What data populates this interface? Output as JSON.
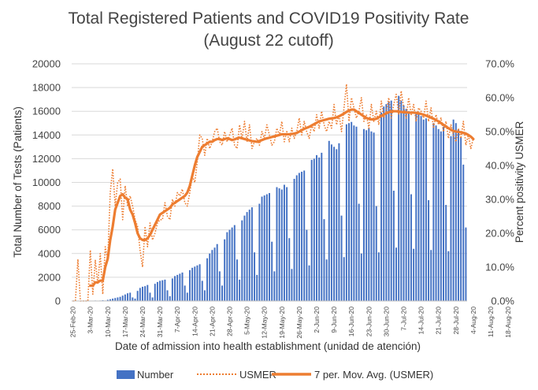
{
  "chart_data": {
    "type": "bar",
    "title": [
      "Total Registered Patients and COVID19 Positivity Rate",
      "(August 22 cutoff)"
    ],
    "xlabel": "Date of admission into health establishment (unidad de atención)",
    "ylabel": "Total Number of Tests (Patients)",
    "y2label": "Percent positivity USMER",
    "ylim": [
      0,
      20000
    ],
    "y2lim": [
      0,
      0.7
    ],
    "yticks": [
      "0",
      "2000",
      "4000",
      "6000",
      "8000",
      "10000",
      "12000",
      "14000",
      "16000",
      "18000",
      "20000"
    ],
    "y2ticks": [
      "0.0%",
      "10.0%",
      "20.0%",
      "30.0%",
      "40.0%",
      "50.0%",
      "60.0%",
      "70.0%"
    ],
    "x_tick_labels": [
      "25-Feb-20",
      "3-Mar-20",
      "10-Mar-20",
      "17-Mar-20",
      "24-Mar-20",
      "31-Mar-20",
      "7-Apr-20",
      "14-Apr-20",
      "21-Apr-20",
      "28-Apr-20",
      "5-May-20",
      "12-May-20",
      "19-May-20",
      "26-May-20",
      "2-Jun-20",
      "9-Jun-20",
      "16-Jun-20",
      "23-Jun-20",
      "30-Jun-20",
      "7-Jul-20",
      "14-Jul-20",
      "21-Jul-20",
      "28-Jul-20",
      "4-Aug-20",
      "11-Aug-20",
      "18-Aug-20"
    ],
    "grid": true,
    "legend_position": "bottom",
    "series": [
      {
        "name": "Number",
        "kind": "bar",
        "axis": "left",
        "color": "#4472C4",
        "values": [
          0,
          0,
          0,
          0,
          0,
          0,
          0,
          30,
          20,
          40,
          30,
          40,
          60,
          40,
          100,
          150,
          200,
          250,
          300,
          350,
          450,
          550,
          650,
          700,
          300,
          200,
          850,
          1100,
          1200,
          1250,
          1350,
          700,
          300,
          1450,
          1600,
          1700,
          1750,
          1800,
          900,
          400,
          1900,
          2100,
          2200,
          2300,
          2400,
          1300,
          700,
          2600,
          2800,
          2900,
          3000,
          3100,
          1700,
          900,
          3600,
          4000,
          4300,
          4500,
          4800,
          2500,
          1300,
          5200,
          5800,
          6000,
          6200,
          6400,
          3500,
          1800,
          6800,
          7200,
          7500,
          7700,
          7900,
          4100,
          2200,
          8200,
          8800,
          8900,
          9000,
          9100,
          5000,
          2500,
          9600,
          9500,
          9400,
          9800,
          9600,
          5300,
          2700,
          10300,
          10600,
          10800,
          10900,
          11000,
          6000,
          3000,
          11900,
          12000,
          12300,
          12100,
          12500,
          6900,
          3500,
          13500,
          13200,
          13000,
          12800,
          13300,
          7200,
          3700,
          14900,
          15000,
          15100,
          14800,
          14700,
          8200,
          4000,
          14500,
          14400,
          14600,
          14300,
          14200,
          8000,
          4100,
          15900,
          16400,
          16600,
          16800,
          16900,
          9300,
          4500,
          17300,
          16900,
          16500,
          16200,
          16000,
          9000,
          4400,
          15800,
          15900,
          15600,
          15300,
          15400,
          8500,
          4300,
          15000,
          14800,
          14500,
          14300,
          14700,
          8100,
          4200,
          13900,
          15300,
          15000,
          14500,
          13800,
          11500,
          6200
        ]
      },
      {
        "name": "USMER",
        "kind": "line",
        "axis": "right",
        "color": "#ED7D31",
        "style": "dotted",
        "values": [
          0,
          0,
          0.123,
          0,
          0,
          0,
          0,
          0.15,
          0.02,
          0.12,
          0.05,
          0.14,
          0.02,
          0.16,
          0.12,
          0.32,
          0.39,
          0.28,
          0.35,
          0.36,
          0.24,
          0.34,
          0.28,
          0.31,
          0.28,
          0.24,
          0.22,
          0.15,
          0.1,
          0.22,
          0.16,
          0.23,
          0.18,
          0.2,
          0.23,
          0.24,
          0.24,
          0.29,
          0.25,
          0.24,
          0.3,
          0.28,
          0.32,
          0.31,
          0.33,
          0.29,
          0.28,
          0.32,
          0.37,
          0.35,
          0.41,
          0.49,
          0.48,
          0.43,
          0.48,
          0.45,
          0.47,
          0.5,
          0.51,
          0.47,
          0.46,
          0.5,
          0.47,
          0.49,
          0.51,
          0.46,
          0.45,
          0.52,
          0.48,
          0.53,
          0.47,
          0.52,
          0.45,
          0.47,
          0.48,
          0.46,
          0.5,
          0.48,
          0.52,
          0.49,
          0.46,
          0.47,
          0.51,
          0.49,
          0.53,
          0.47,
          0.5,
          0.47,
          0.51,
          0.48,
          0.5,
          0.54,
          0.49,
          0.53,
          0.5,
          0.48,
          0.52,
          0.5,
          0.55,
          0.51,
          0.56,
          0.52,
          0.5,
          0.53,
          0.51,
          0.58,
          0.52,
          0.55,
          0.5,
          0.57,
          0.64,
          0.53,
          0.6,
          0.57,
          0.54,
          0.56,
          0.6,
          0.53,
          0.55,
          0.51,
          0.58,
          0.53,
          0.56,
          0.52,
          0.59,
          0.54,
          0.56,
          0.6,
          0.54,
          0.58,
          0.61,
          0.55,
          0.62,
          0.57,
          0.54,
          0.6,
          0.55,
          0.58,
          0.53,
          0.57,
          0.56,
          0.54,
          0.59,
          0.53,
          0.57,
          0.51,
          0.55,
          0.52,
          0.54,
          0.5,
          0.53,
          0.48,
          0.52,
          0.49,
          0.47,
          0.51,
          0.48,
          0.53,
          0.46,
          0.49,
          0.45,
          0.48
        ]
      },
      {
        "name": "7 per. Mov. Avg. (USMER)",
        "kind": "line",
        "axis": "right",
        "color": "#ED7D31",
        "style": "solid",
        "values": [
          null,
          null,
          null,
          null,
          null,
          null,
          null,
          0.045,
          0.045,
          0.055,
          0.055,
          0.06,
          0.06,
          0.1,
          0.125,
          0.18,
          0.22,
          0.27,
          0.29,
          0.31,
          0.315,
          0.305,
          0.3,
          0.27,
          0.255,
          0.23,
          0.2,
          0.185,
          0.18,
          0.18,
          0.185,
          0.195,
          0.21,
          0.225,
          0.24,
          0.255,
          0.26,
          0.265,
          0.27,
          0.275,
          0.285,
          0.29,
          0.295,
          0.3,
          0.305,
          0.31,
          0.32,
          0.34,
          0.37,
          0.4,
          0.425,
          0.44,
          0.455,
          0.46,
          0.465,
          0.47,
          0.47,
          0.475,
          0.478,
          0.478,
          0.475,
          0.478,
          0.48,
          0.478,
          0.475,
          0.477,
          0.48,
          0.482,
          0.48,
          0.478,
          0.476,
          0.474,
          0.472,
          0.471,
          0.47,
          0.472,
          0.475,
          0.478,
          0.48,
          0.482,
          0.484,
          0.486,
          0.488,
          0.49,
          0.492,
          0.492,
          0.492,
          0.492,
          0.493,
          0.494,
          0.496,
          0.5,
          0.504,
          0.508,
          0.511,
          0.514,
          0.518,
          0.522,
          0.526,
          0.53,
          0.532,
          0.534,
          0.536,
          0.538,
          0.539,
          0.54,
          0.542,
          0.545,
          0.549,
          0.553,
          0.558,
          0.562,
          0.565,
          0.565,
          0.56,
          0.555,
          0.55,
          0.545,
          0.54,
          0.538,
          0.536,
          0.536,
          0.538,
          0.542,
          0.546,
          0.55,
          0.554,
          0.557,
          0.559,
          0.56,
          0.56,
          0.559,
          0.558,
          0.557,
          0.557,
          0.556,
          0.556,
          0.556,
          0.555,
          0.554,
          0.552,
          0.55,
          0.547,
          0.544,
          0.541,
          0.538,
          0.534,
          0.53,
          0.525,
          0.52,
          0.515,
          0.51,
          0.505,
          0.502,
          0.5,
          0.499,
          0.498,
          0.496,
          0.494,
          0.49,
          0.485,
          0.478
        ]
      }
    ]
  },
  "legend": {
    "bar_color": "#4472C4",
    "line_color": "#ED7D31",
    "items": [
      "Number",
      "USMER",
      "7 per. Mov. Avg. (USMER)"
    ]
  }
}
